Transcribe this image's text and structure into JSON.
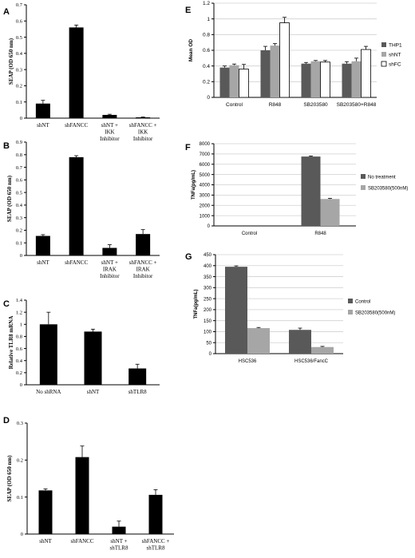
{
  "chart_data": [
    {
      "type": "bar",
      "panel": "A",
      "categories": [
        "shNT",
        "shFANCC",
        "shNT + IKK Inhibitor",
        "shFANCC + IKK Inhibitor"
      ],
      "values": [
        0.09,
        0.56,
        0.02,
        0.005
      ],
      "errors": [
        0.02,
        0.015,
        0.004,
        0.002
      ],
      "ylabel": "SEAP (OD 650 nm)",
      "ylim": [
        0,
        0.7
      ],
      "yticks": [
        0,
        0.1,
        0.2,
        0.3,
        0.4,
        0.5,
        0.6,
        0.7
      ],
      "color": "#000000",
      "grid": false
    },
    {
      "type": "bar",
      "panel": "B",
      "categories": [
        "shNT",
        "shFANCC",
        "shNT + IRAK Inhibitor",
        "shFANCC + IRAK Inhibitor"
      ],
      "values": [
        0.155,
        0.78,
        0.06,
        0.17
      ],
      "errors": [
        0.01,
        0.012,
        0.025,
        0.035
      ],
      "ylabel": "SEAP (OD 650 nm)",
      "ylim": [
        0,
        0.9
      ],
      "yticks": [
        0,
        0.1,
        0.2,
        0.3,
        0.4,
        0.5,
        0.6,
        0.7,
        0.8,
        0.9
      ],
      "color": "#000000",
      "grid": false
    },
    {
      "type": "bar",
      "panel": "C",
      "categories": [
        "No shRNA",
        "shNT",
        "shTLR8"
      ],
      "values": [
        1.0,
        0.88,
        0.27
      ],
      "errors": [
        0.2,
        0.04,
        0.07
      ],
      "ylabel": "Relative TLR8 mRNA",
      "ylim": [
        0,
        1.4
      ],
      "yticks": [
        0,
        0.2,
        0.4,
        0.6,
        0.8,
        1,
        1.2,
        1.4
      ],
      "color": "#000000",
      "grid": false
    },
    {
      "type": "bar",
      "panel": "D",
      "categories": [
        "shNT",
        "shFANCC",
        "shNT + shTLR8",
        "shFANCC + shTLR8"
      ],
      "values": [
        0.118,
        0.208,
        0.02,
        0.106
      ],
      "errors": [
        0.004,
        0.03,
        0.015,
        0.014
      ],
      "ylabel": "SEAP (OD 650 nm)",
      "ylim": [
        0,
        0.3
      ],
      "yticks": [
        0,
        0.1,
        0.2,
        0.3
      ],
      "color": "#000000",
      "grid": false
    },
    {
      "type": "bar",
      "panel": "E",
      "categories": [
        "Control",
        "R848",
        "SB203580",
        "SB203580+R848"
      ],
      "series": [
        {
          "name": "THP1",
          "values": [
            0.38,
            0.6,
            0.43,
            0.43
          ],
          "errors": [
            0.02,
            0.05,
            0.015,
            0.025
          ],
          "color": "#595959"
        },
        {
          "name": "shNT",
          "values": [
            0.41,
            0.66,
            0.46,
            0.46
          ],
          "errors": [
            0.015,
            0.025,
            0.01,
            0.04
          ],
          "color": "#a6a6a6"
        },
        {
          "name": "shFC",
          "values": [
            0.36,
            0.95,
            0.45,
            0.61
          ],
          "errors": [
            0.06,
            0.07,
            0.02,
            0.04
          ],
          "color": "#ffffff"
        }
      ],
      "ylabel": "Mean OD",
      "ylim": [
        0,
        1.2
      ],
      "yticks": [
        0,
        0.2,
        0.4,
        0.6,
        0.8,
        1,
        1.2
      ],
      "grid": true,
      "legend": "right"
    },
    {
      "type": "bar",
      "panel": "F",
      "categories": [
        "Control",
        "R848"
      ],
      "series": [
        {
          "name": "No treatment",
          "values": [
            0,
            6750
          ],
          "errors": [
            0,
            60
          ],
          "color": "#595959"
        },
        {
          "name": "SB203580(500nM)",
          "values": [
            0,
            2620
          ],
          "errors": [
            0,
            60
          ],
          "color": "#a6a6a6"
        }
      ],
      "ylabel": "TNFa(pg/mL)",
      "ylim": [
        0,
        8000
      ],
      "yticks": [
        0,
        1000,
        2000,
        3000,
        4000,
        5000,
        6000,
        7000,
        8000
      ],
      "grid": true,
      "legend": "right"
    },
    {
      "type": "bar",
      "panel": "G",
      "categories": [
        "HSC536",
        "HSC536/FancC"
      ],
      "series": [
        {
          "name": "Control",
          "values": [
            395,
            108
          ],
          "errors": [
            4,
            8
          ],
          "color": "#595959"
        },
        {
          "name": "SB203580(500nM)",
          "values": [
            116,
            30
          ],
          "errors": [
            3,
            3
          ],
          "color": "#a6a6a6"
        }
      ],
      "ylabel": "TNFa(pg/mL)",
      "ylim": [
        0,
        450
      ],
      "yticks": [
        0,
        50,
        100,
        150,
        200,
        250,
        300,
        350,
        400,
        450
      ],
      "grid": true,
      "legend": "right"
    }
  ]
}
